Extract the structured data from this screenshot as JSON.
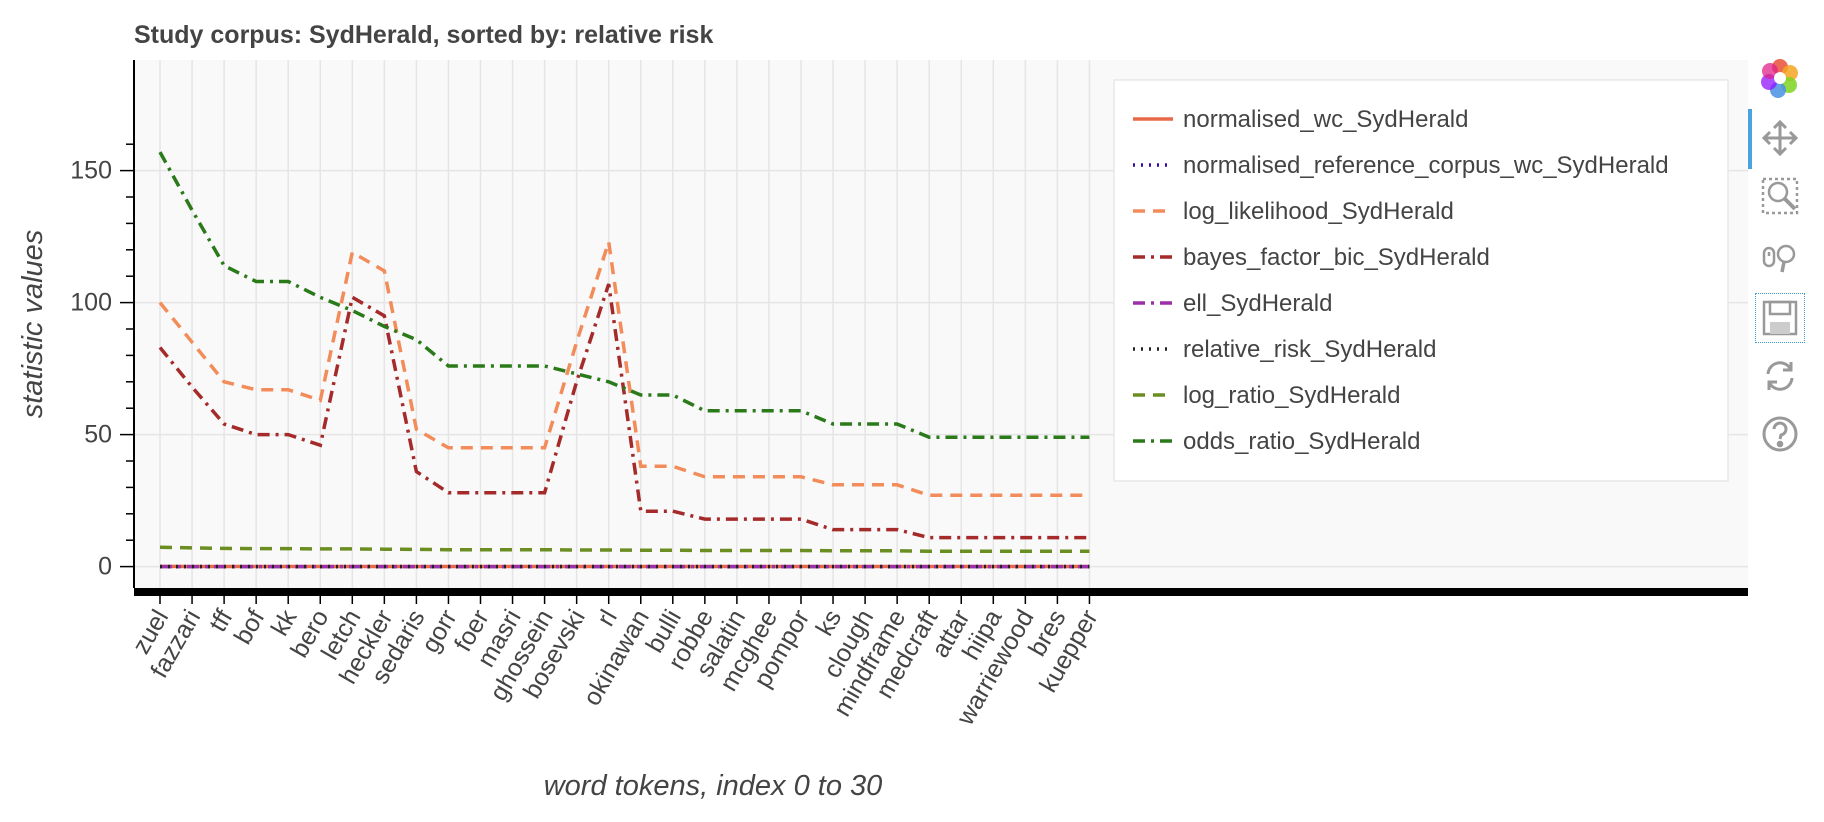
{
  "chart_data": {
    "type": "line",
    "title": "Study corpus: SydHerald, sorted by: relative risk",
    "xlabel": "word tokens, index 0 to 30",
    "ylabel": "statistic values",
    "categories": [
      "zuel",
      "fazzari",
      "tff",
      "bof",
      "kk",
      "bero",
      "letch",
      "heckler",
      "sedaris",
      "gorr",
      "foer",
      "masri",
      "ghossein",
      "bosevski",
      "rl",
      "okinawan",
      "bulli",
      "robbe",
      "salatin",
      "mcghee",
      "pompor",
      "ks",
      "clough",
      "mindframe",
      "medcraft",
      "attar",
      "hiipa",
      "warriewood",
      "bres",
      "kuepper"
    ],
    "yticks": [
      0,
      50,
      100,
      150
    ],
    "ylim": [
      -8,
      163
    ],
    "grid": true,
    "legend_position": "top-right",
    "series": [
      {
        "name": "normalised_wc_SydHerald",
        "color": "#e8684a",
        "dash": "solid",
        "values": [
          0.06,
          0.05,
          0.05,
          0.05,
          0.05,
          0.05,
          0.05,
          0.05,
          0.05,
          0.05,
          0.05,
          0.05,
          0.05,
          0.05,
          0.05,
          0.05,
          0.05,
          0.05,
          0.05,
          0.05,
          0.05,
          0.05,
          0.05,
          0.05,
          0.05,
          0.05,
          0.05,
          0.05,
          0.05,
          0.05
        ]
      },
      {
        "name": "normalised_reference_corpus_wc_SydHerald",
        "color": "#3a0ca3",
        "dash": "dot",
        "values": [
          0,
          0,
          0,
          0,
          0,
          0,
          0,
          0,
          0,
          0,
          0,
          0,
          0,
          0,
          0,
          0,
          0,
          0,
          0,
          0,
          0,
          0,
          0,
          0,
          0,
          0,
          0,
          0,
          0,
          0
        ]
      },
      {
        "name": "log_likelihood_SydHerald",
        "color": "#f28c5a",
        "dash": "dash",
        "values": [
          100,
          85,
          70,
          67,
          67,
          63,
          119,
          112,
          52,
          45,
          45,
          45,
          45,
          85,
          123,
          38,
          38,
          34,
          34,
          34,
          34,
          31,
          31,
          31,
          27,
          27,
          27,
          27,
          27,
          27
        ]
      },
      {
        "name": "bayes_factor_bic_SydHerald",
        "color": "#a52a2a",
        "dash": "dashdot",
        "values": [
          83,
          68,
          54,
          50,
          50,
          46,
          102,
          95,
          36,
          28,
          28,
          28,
          28,
          70,
          107,
          21,
          21,
          18,
          18,
          18,
          18,
          14,
          14,
          14,
          11,
          11,
          11,
          11,
          11,
          11
        ]
      },
      {
        "name": "ell_SydHerald",
        "color": "#9b30a8",
        "dash": "dashdot",
        "values": [
          0,
          0,
          0,
          0,
          0,
          0,
          0,
          0,
          0,
          0,
          0,
          0,
          0,
          0,
          0,
          0,
          0,
          0,
          0,
          0,
          0,
          0,
          0,
          0,
          0,
          0,
          0,
          0,
          0,
          0
        ]
      },
      {
        "name": "relative_risk_SydHerald",
        "color": "#222222",
        "dash": "dot",
        "values": [
          0,
          0,
          0,
          0,
          0,
          0,
          0,
          0,
          0,
          0,
          0,
          0,
          0,
          0,
          0,
          0,
          0,
          0,
          0,
          0,
          0,
          0,
          0,
          0,
          0,
          0,
          0,
          0,
          0,
          0
        ]
      },
      {
        "name": "log_ratio_SydHerald",
        "color": "#6b8e23",
        "dash": "dash",
        "values": [
          7.3,
          7.1,
          6.9,
          6.8,
          6.8,
          6.7,
          6.7,
          6.6,
          6.5,
          6.4,
          6.4,
          6.4,
          6.4,
          6.3,
          6.3,
          6.2,
          6.2,
          6.1,
          6.1,
          6.1,
          6.1,
          6.0,
          6.0,
          6.0,
          5.8,
          5.8,
          5.8,
          5.8,
          5.8,
          5.8
        ]
      },
      {
        "name": "odds_ratio_SydHerald",
        "color": "#2a7a1a",
        "dash": "dashdot",
        "values": [
          157,
          135,
          114,
          108,
          108,
          102,
          97,
          91,
          86,
          76,
          76,
          76,
          76,
          73,
          70,
          65,
          65,
          59,
          59,
          59,
          59,
          54,
          54,
          54,
          49,
          49,
          49,
          49,
          49,
          49
        ]
      }
    ]
  },
  "toolbar": {
    "tools": [
      {
        "icon": "bokeh-logo-icon",
        "active": false
      },
      {
        "icon": "pan-move-icon",
        "active": true
      },
      {
        "icon": "box-zoom-icon",
        "active": false
      },
      {
        "icon": "wheel-zoom-icon",
        "active": false
      },
      {
        "icon": "save-icon",
        "active": false
      },
      {
        "icon": "reset-icon",
        "active": false
      },
      {
        "icon": "help-icon",
        "active": false
      }
    ]
  }
}
